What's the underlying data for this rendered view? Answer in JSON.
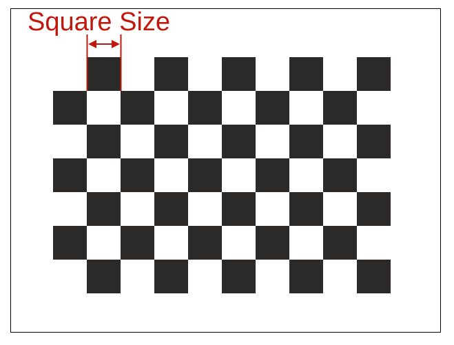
{
  "annotation": {
    "label": "Square Size",
    "color": "#c0180c"
  },
  "board": {
    "columns": 10,
    "rows": 7,
    "dark_color": "#2b2a29",
    "light_color": "#ffffff",
    "first_row_starts_with": "light"
  }
}
